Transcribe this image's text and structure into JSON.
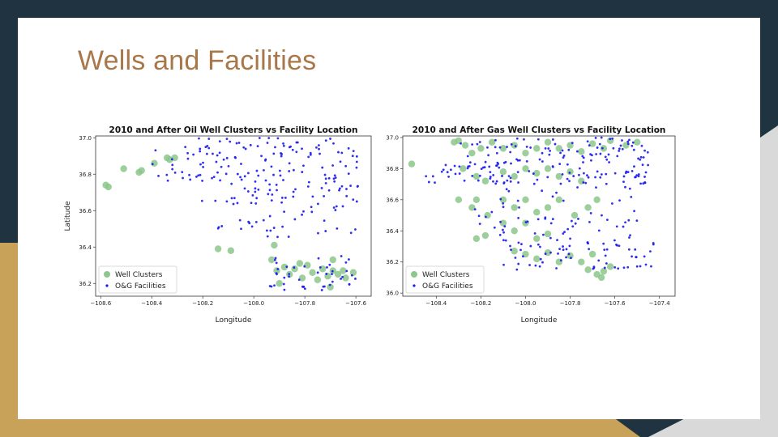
{
  "slide": {
    "title": "Wells and Facilities"
  },
  "colors": {
    "wells": "#8cc78c",
    "facilities": "#1a1aee",
    "title": "#a8784a",
    "dark": "#1f3440",
    "gold": "#c9a25a"
  },
  "chart_data": [
    {
      "type": "scatter",
      "title": "2010 and After Oil Well Clusters vs Facility Location",
      "xlabel": "Longitude",
      "ylabel": "Latitude",
      "xlim": [
        -108.62,
        -107.54
      ],
      "ylim": [
        36.13,
        37.01
      ],
      "xticks": [
        -108.6,
        -108.4,
        -108.2,
        -108.0,
        -107.8,
        -107.6
      ],
      "yticks": [
        36.2,
        36.4,
        36.6,
        36.8,
        37.0
      ],
      "legend": "lower-left",
      "series": [
        {
          "name": "Well Clusters",
          "points": [
            [
              -108.58,
              36.74
            ],
            [
              -108.57,
              36.73
            ],
            [
              -108.51,
              36.83
            ],
            [
              -108.45,
              36.81
            ],
            [
              -108.44,
              36.82
            ],
            [
              -108.39,
              36.86
            ],
            [
              -108.34,
              36.89
            ],
            [
              -108.33,
              36.88
            ],
            [
              -108.31,
              36.89
            ],
            [
              -108.14,
              36.39
            ],
            [
              -108.09,
              36.38
            ],
            [
              -107.92,
              36.41
            ],
            [
              -107.93,
              36.33
            ],
            [
              -107.91,
              36.27
            ],
            [
              -107.88,
              36.29
            ],
            [
              -107.86,
              36.25
            ],
            [
              -107.84,
              36.28
            ],
            [
              -107.81,
              36.23
            ],
            [
              -107.79,
              36.3
            ],
            [
              -107.77,
              36.26
            ],
            [
              -107.75,
              36.22
            ],
            [
              -107.73,
              36.28
            ],
            [
              -107.71,
              36.24
            ],
            [
              -107.69,
              36.27
            ],
            [
              -107.69,
              36.33
            ],
            [
              -107.67,
              36.25
            ],
            [
              -107.65,
              36.27
            ],
            [
              -107.64,
              36.23
            ],
            [
              -107.7,
              36.18
            ],
            [
              -107.61,
              36.26
            ],
            [
              -107.82,
              36.31
            ],
            [
              -107.9,
              36.2
            ]
          ]
        },
        {
          "name": "O&G Facilities",
          "points": []
        }
      ]
    },
    {
      "type": "scatter",
      "title": "2010 and After Gas Well Clusters vs Facility Location",
      "xlabel": "Longitude",
      "ylabel": "",
      "xlim": [
        -108.55,
        -107.33
      ],
      "ylim": [
        35.98,
        37.01
      ],
      "xticks": [
        -108.4,
        -108.2,
        -108.0,
        -107.8,
        -107.6,
        -107.4
      ],
      "yticks": [
        36.0,
        36.2,
        36.4,
        36.6,
        36.8,
        37.0
      ],
      "legend": "lower-left",
      "series": [
        {
          "name": "Well Clusters",
          "points": [
            [
              -108.51,
              36.83
            ],
            [
              -108.32,
              36.97
            ],
            [
              -108.3,
              36.98
            ],
            [
              -108.27,
              36.95
            ],
            [
              -108.24,
              36.9
            ],
            [
              -108.2,
              36.93
            ],
            [
              -108.15,
              36.97
            ],
            [
              -108.1,
              36.93
            ],
            [
              -108.05,
              36.95
            ],
            [
              -108.0,
              36.9
            ],
            [
              -107.95,
              36.93
            ],
            [
              -107.9,
              36.97
            ],
            [
              -107.85,
              36.93
            ],
            [
              -107.8,
              36.95
            ],
            [
              -107.75,
              36.91
            ],
            [
              -107.7,
              36.96
            ],
            [
              -107.65,
              36.93
            ],
            [
              -107.62,
              36.98
            ],
            [
              -107.55,
              36.95
            ],
            [
              -107.5,
              36.97
            ],
            [
              -108.28,
              36.8
            ],
            [
              -108.22,
              36.75
            ],
            [
              -108.18,
              36.72
            ],
            [
              -108.1,
              36.78
            ],
            [
              -108.05,
              36.75
            ],
            [
              -108.0,
              36.8
            ],
            [
              -107.95,
              36.77
            ],
            [
              -107.9,
              36.8
            ],
            [
              -107.85,
              36.75
            ],
            [
              -107.8,
              36.78
            ],
            [
              -107.75,
              36.72
            ],
            [
              -108.3,
              36.6
            ],
            [
              -108.24,
              36.55
            ],
            [
              -108.22,
              36.6
            ],
            [
              -108.17,
              36.5
            ],
            [
              -108.1,
              36.6
            ],
            [
              -108.05,
              36.55
            ],
            [
              -108.0,
              36.6
            ],
            [
              -107.95,
              36.52
            ],
            [
              -107.9,
              36.55
            ],
            [
              -107.85,
              36.6
            ],
            [
              -107.78,
              36.5
            ],
            [
              -107.72,
              36.55
            ],
            [
              -107.68,
              36.6
            ],
            [
              -108.22,
              36.35
            ],
            [
              -108.18,
              36.37
            ],
            [
              -108.1,
              36.45
            ],
            [
              -108.05,
              36.4
            ],
            [
              -108.0,
              36.45
            ],
            [
              -107.95,
              36.35
            ],
            [
              -107.9,
              36.38
            ],
            [
              -108.05,
              36.27
            ],
            [
              -108.0,
              36.25
            ],
            [
              -107.95,
              36.22
            ],
            [
              -107.9,
              36.26
            ],
            [
              -107.85,
              36.2
            ],
            [
              -107.8,
              36.24
            ],
            [
              -107.75,
              36.2
            ],
            [
              -107.72,
              36.15
            ],
            [
              -107.68,
              36.12
            ],
            [
              -107.65,
              36.14
            ],
            [
              -107.66,
              36.1
            ],
            [
              -107.62,
              36.17
            ],
            [
              -107.7,
              36.25
            ]
          ]
        },
        {
          "name": "O&G Facilities",
          "points": []
        }
      ]
    }
  ]
}
